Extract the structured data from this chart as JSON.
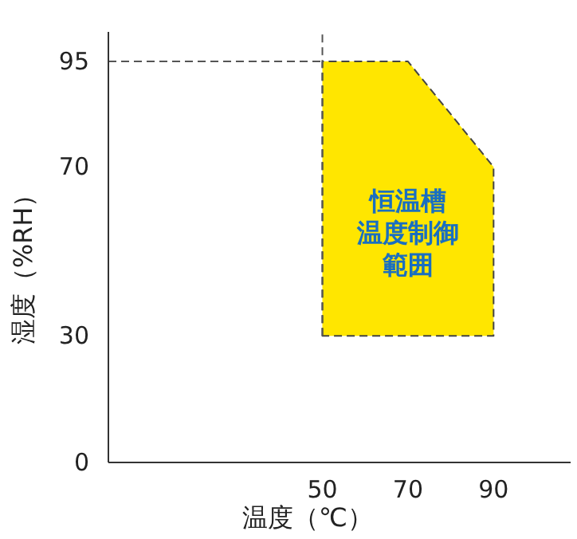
{
  "chart_data": {
    "type": "area",
    "xlabel": "温度（℃）",
    "ylabel": "湿度（%RH）",
    "series": [
      {
        "color": "#ffe600",
        "x": [
          50,
          50,
          70,
          90,
          90
        ],
        "values": [
          30,
          95,
          95,
          70,
          30
        ]
      }
    ],
    "line_style": "dashed",
    "xlim": [
      0,
      108
    ],
    "ylim": [
      0,
      102
    ],
    "xticks": [
      50,
      70,
      90
    ],
    "yticks": [
      0,
      30,
      70,
      95
    ],
    "ref_lines": [
      {
        "axis": "y",
        "value": 95,
        "line_style": "dashed",
        "color": "#555555"
      },
      {
        "axis": "x",
        "value": 50,
        "line_style": "dashed",
        "color": "#555555"
      }
    ],
    "annotations": [
      "恒温槽",
      "温度制御",
      "範囲"
    ]
  }
}
